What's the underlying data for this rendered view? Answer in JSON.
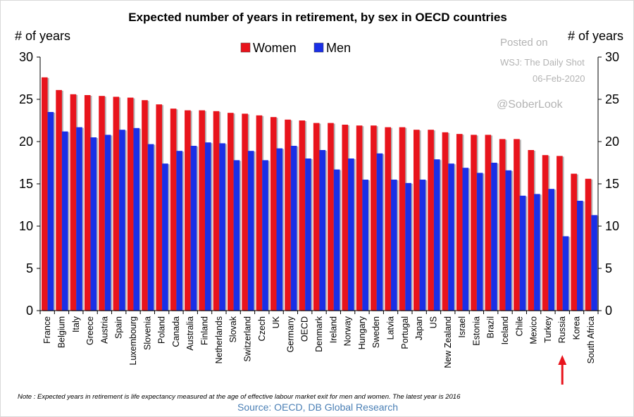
{
  "chart_data": {
    "type": "bar",
    "title": "Expected number of years in retirement, by sex in OECD countries",
    "ylabel_left": "# of years",
    "ylabel_right": "# of years",
    "ylim": [
      0,
      30
    ],
    "yticks": [
      0,
      5,
      10,
      15,
      20,
      25,
      30
    ],
    "grid": false,
    "legend_position": "top-center",
    "categories": [
      "France",
      "Belgium",
      "Italy",
      "Greece",
      "Austria",
      "Spain",
      "Luxembourg",
      "Slovenia",
      "Poland",
      "Canada",
      "Australia",
      "Finland",
      "Netherlands",
      "Slovak",
      "Switzerland",
      "Czech",
      "UK",
      "Germany",
      "OECD",
      "Denmark",
      "Ireland",
      "Norway",
      "Hungary",
      "Sweden",
      "Latvia",
      "Portugal",
      "Japan",
      "US",
      "New Zealand",
      "Israel",
      "Estonia",
      "Brazil",
      "Iceland",
      "Chile",
      "Mexico",
      "Turkey",
      "Russia",
      "Korea",
      "South Africa"
    ],
    "series": [
      {
        "name": "Women",
        "color": "#e8141c",
        "values": [
          27.6,
          26.1,
          25.6,
          25.5,
          25.4,
          25.3,
          25.2,
          24.9,
          24.4,
          23.9,
          23.7,
          23.7,
          23.6,
          23.4,
          23.3,
          23.1,
          22.9,
          22.6,
          22.5,
          22.2,
          22.2,
          22.0,
          21.9,
          21.9,
          21.7,
          21.7,
          21.4,
          21.4,
          21.1,
          20.9,
          20.8,
          20.8,
          20.3,
          20.3,
          19.0,
          18.4,
          18.3,
          16.2,
          15.6
        ]
      },
      {
        "name": "Men",
        "color": "#1a2fe6",
        "values": [
          23.5,
          21.2,
          21.7,
          20.5,
          20.8,
          21.4,
          21.6,
          19.7,
          17.4,
          18.9,
          19.5,
          19.9,
          19.8,
          17.8,
          18.9,
          17.8,
          19.2,
          19.5,
          18.0,
          19.0,
          16.7,
          18.0,
          15.5,
          18.6,
          15.5,
          15.1,
          15.5,
          17.9,
          17.4,
          16.9,
          16.3,
          17.5,
          16.6,
          13.6,
          13.8,
          14.4,
          8.8,
          13.0,
          11.3
        ]
      }
    ],
    "annotation_arrow_category": "Russia",
    "watermark": {
      "line1": "Posted on",
      "line2": "WSJ: The Daily Shot",
      "line3": "06-Feb-2020",
      "handle": "@SoberLook"
    },
    "note": "Note : Expected years in retirement is life expectancy measured at the age of effective labour market exit for men and women.  The latest year is 2016",
    "source": "Source: OECD, DB Global Research"
  }
}
